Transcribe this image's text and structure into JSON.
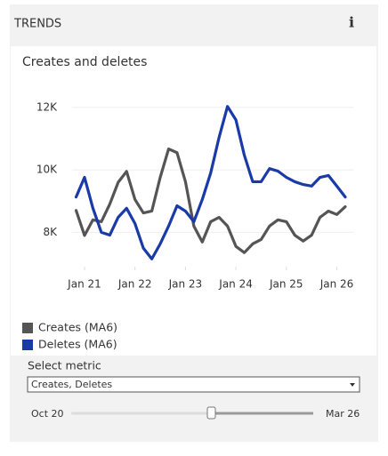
{
  "header": {
    "title": "TRENDS",
    "info": "i"
  },
  "chart_data": {
    "type": "line",
    "title": "Creates and deletes",
    "x": [
      -2,
      0,
      2,
      4,
      6,
      8,
      10,
      12,
      14,
      16,
      18,
      20,
      22,
      24,
      26,
      28,
      30,
      32,
      34,
      36,
      38,
      40,
      42,
      44,
      46,
      48,
      50,
      52,
      54,
      56,
      58,
      60,
      62
    ],
    "xlim": [
      -3,
      64
    ],
    "xticks": [
      {
        "value": 0,
        "label": "Jan 21"
      },
      {
        "value": 12,
        "label": "Jan 22"
      },
      {
        "value": 24,
        "label": "Jan 23"
      },
      {
        "value": 36,
        "label": "Jan 24"
      },
      {
        "value": 48,
        "label": "Jan 25"
      },
      {
        "value": 60,
        "label": "Jan 26"
      }
    ],
    "ylim": [
      6900,
      12450
    ],
    "yticks": [
      {
        "value": 8000,
        "label": "8K"
      },
      {
        "value": 10000,
        "label": "10K"
      },
      {
        "value": 12000,
        "label": "12K"
      }
    ],
    "grid": true,
    "series": [
      {
        "name": "Creates (MA6)",
        "color": "#555555",
        "values": [
          8700,
          7900,
          8400,
          8340,
          8900,
          9600,
          9950,
          9050,
          8620,
          8680,
          9760,
          10670,
          10550,
          9620,
          8200,
          7690,
          8340,
          8480,
          8200,
          7550,
          7350,
          7630,
          7770,
          8200,
          8400,
          8340,
          7910,
          7720,
          7910,
          8480,
          8680,
          8570,
          8820
        ]
      },
      {
        "name": "Deletes (MA6)",
        "color": "#1a3aa8",
        "values": [
          9130,
          9760,
          8770,
          8000,
          7910,
          8480,
          8770,
          8280,
          7490,
          7150,
          7630,
          8200,
          8850,
          8680,
          8340,
          9050,
          9900,
          11040,
          12030,
          11600,
          10470,
          9620,
          9620,
          10040,
          9960,
          9760,
          9620,
          9530,
          9480,
          9760,
          9820,
          9480,
          9130
        ]
      }
    ]
  },
  "controls": {
    "select_label": "Select metric",
    "select_value": "Creates, Deletes",
    "slider_start": "Oct 20",
    "slider_end": "Mar 26"
  }
}
